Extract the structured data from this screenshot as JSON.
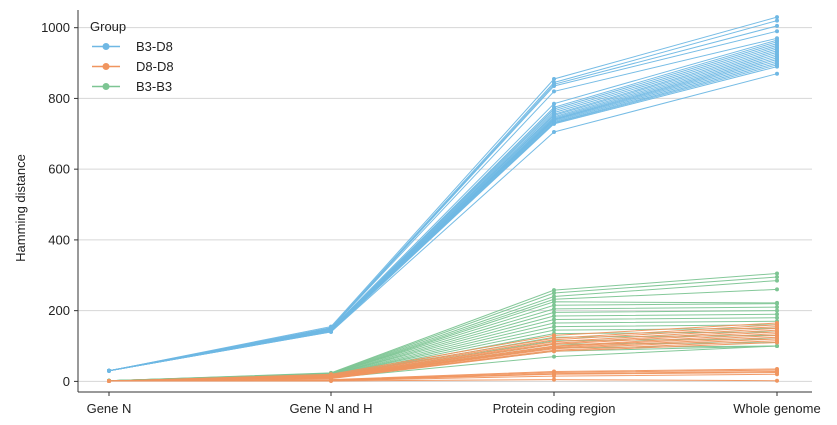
{
  "chart_data": {
    "type": "line",
    "categories": [
      "Gene N",
      "Gene N and H",
      "Protein coding region",
      "Whole genome"
    ],
    "ylabel": "Hamming distance",
    "xlabel": "",
    "ylim": [
      -30,
      1050
    ],
    "yticks": [
      0,
      200,
      400,
      600,
      800,
      1000
    ],
    "grid": "horizontal",
    "legend": {
      "title": "Group",
      "placement": "top-left",
      "entries": [
        {
          "name": "B3-D8",
          "color": "#6fb8e4"
        },
        {
          "name": "D8-D8",
          "color": "#f0955f"
        },
        {
          "name": "B3-B3",
          "color": "#7dc593"
        }
      ]
    },
    "groups": [
      {
        "name": "B3-D8",
        "color": "#6fb8e4",
        "lines": [
          [
            30,
            155,
            855,
            1030
          ],
          [
            30,
            152,
            845,
            1020
          ],
          [
            30,
            150,
            840,
            1005
          ],
          [
            30,
            150,
            835,
            990
          ],
          [
            30,
            150,
            820,
            970
          ],
          [
            30,
            148,
            785,
            965
          ],
          [
            30,
            147,
            775,
            960
          ],
          [
            30,
            146,
            770,
            955
          ],
          [
            30,
            146,
            765,
            950
          ],
          [
            30,
            145,
            760,
            945
          ],
          [
            30,
            145,
            755,
            940
          ],
          [
            30,
            145,
            752,
            935
          ],
          [
            30,
            144,
            748,
            930
          ],
          [
            30,
            144,
            745,
            925
          ],
          [
            30,
            143,
            742,
            920
          ],
          [
            30,
            143,
            740,
            915
          ],
          [
            30,
            142,
            738,
            910
          ],
          [
            30,
            142,
            735,
            905
          ],
          [
            30,
            141,
            732,
            900
          ],
          [
            30,
            141,
            730,
            895
          ],
          [
            30,
            140,
            728,
            890
          ],
          [
            30,
            140,
            705,
            870
          ]
        ]
      },
      {
        "name": "B3-B3",
        "color": "#7dc593",
        "lines": [
          [
            2,
            24,
            258,
            305
          ],
          [
            2,
            23,
            250,
            295
          ],
          [
            2,
            22,
            240,
            285
          ],
          [
            2,
            21,
            232,
            260
          ],
          [
            2,
            20,
            225,
            222
          ],
          [
            2,
            20,
            215,
            220
          ],
          [
            2,
            19,
            205,
            210
          ],
          [
            2,
            18,
            195,
            200
          ],
          [
            2,
            18,
            185,
            190
          ],
          [
            2,
            17,
            175,
            180
          ],
          [
            2,
            16,
            165,
            170
          ],
          [
            2,
            16,
            155,
            160
          ],
          [
            2,
            15,
            145,
            150
          ],
          [
            2,
            14,
            135,
            140
          ],
          [
            2,
            14,
            125,
            130
          ],
          [
            2,
            13,
            115,
            120
          ],
          [
            2,
            12,
            105,
            110
          ],
          [
            2,
            12,
            95,
            100
          ],
          [
            2,
            11,
            85,
            100
          ],
          [
            2,
            10,
            70,
            100
          ]
        ]
      },
      {
        "name": "D8-D8",
        "color": "#f0955f",
        "lines": [
          [
            1,
            20,
            130,
            165
          ],
          [
            1,
            18,
            122,
            160
          ],
          [
            1,
            16,
            118,
            155
          ],
          [
            1,
            15,
            112,
            150
          ],
          [
            1,
            14,
            108,
            145
          ],
          [
            1,
            13,
            105,
            140
          ],
          [
            1,
            12,
            100,
            135
          ],
          [
            1,
            11,
            98,
            130
          ],
          [
            1,
            10,
            95,
            125
          ],
          [
            1,
            10,
            92,
            120
          ],
          [
            1,
            9,
            88,
            115
          ],
          [
            1,
            8,
            85,
            110
          ],
          [
            1,
            5,
            28,
            35
          ],
          [
            1,
            4,
            25,
            32
          ],
          [
            1,
            3,
            22,
            28
          ],
          [
            1,
            3,
            20,
            25
          ],
          [
            1,
            2,
            15,
            20
          ],
          [
            1,
            1,
            5,
            2
          ]
        ]
      }
    ]
  }
}
